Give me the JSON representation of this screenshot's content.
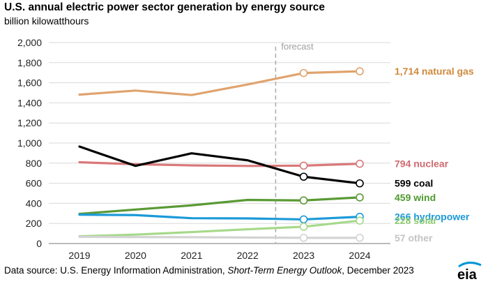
{
  "header": {
    "title": "U.S. annual electric power sector generation by energy source",
    "subtitle": "billion kilowatthours"
  },
  "source": {
    "prefix": "Data source: U.S. Energy Information Administration, ",
    "publication": "Short-Term Energy Outlook",
    "suffix": ", December 2023"
  },
  "logo": {
    "text": "eia",
    "accent": "#0096d7"
  },
  "chart_data": {
    "type": "line",
    "title": "U.S. annual electric power sector generation by energy source",
    "ylabel": "billion kilowatthours",
    "xlabel": "",
    "x": [
      2019,
      2020,
      2021,
      2022,
      2023,
      2024
    ],
    "ylim": [
      0,
      2000
    ],
    "yticks": [
      0,
      200,
      400,
      600,
      800,
      1000,
      1200,
      1400,
      1600,
      1800,
      2000
    ],
    "ytick_labels": [
      "0",
      "200",
      "400",
      "600",
      "800",
      "1,000",
      "1,200",
      "1,400",
      "1,600",
      "1,800",
      "2,000"
    ],
    "grid": true,
    "forecast_label": "forecast",
    "forecast_start": 2022.5,
    "series": [
      {
        "name": "natural gas",
        "value_label": "1,714",
        "color": "#e0a36e",
        "label_color": "#d08a3c",
        "values": [
          1482,
          1522,
          1478,
          1583,
          1697,
          1714
        ]
      },
      {
        "name": "nuclear",
        "value_label": "794",
        "color": "#d9787a",
        "label_color": "#d06a70",
        "values": [
          809,
          789,
          778,
          772,
          775,
          794
        ]
      },
      {
        "name": "coal",
        "value_label": "599",
        "color": "#000000",
        "label_color": "#000000",
        "values": [
          965,
          773,
          898,
          828,
          665,
          599
        ]
      },
      {
        "name": "wind",
        "value_label": "459",
        "color": "#5a9a35",
        "label_color": "#4e9a2e",
        "values": [
          295,
          338,
          380,
          434,
          429,
          459
        ]
      },
      {
        "name": "hydropower",
        "value_label": "266",
        "color": "#1b9ad8",
        "label_color": "#1b9ad8",
        "values": [
          287,
          283,
          252,
          250,
          240,
          266
        ]
      },
      {
        "name": "solar",
        "value_label": "228",
        "color": "#a6d98a",
        "label_color": "#8cc96e",
        "values": [
          72,
          89,
          114,
          142,
          167,
          228
        ]
      },
      {
        "name": "other",
        "value_label": "57",
        "color": "#d3d3d3",
        "label_color": "#c4c4c4",
        "values": [
          67,
          64,
          63,
          60,
          57,
          57
        ]
      }
    ]
  }
}
